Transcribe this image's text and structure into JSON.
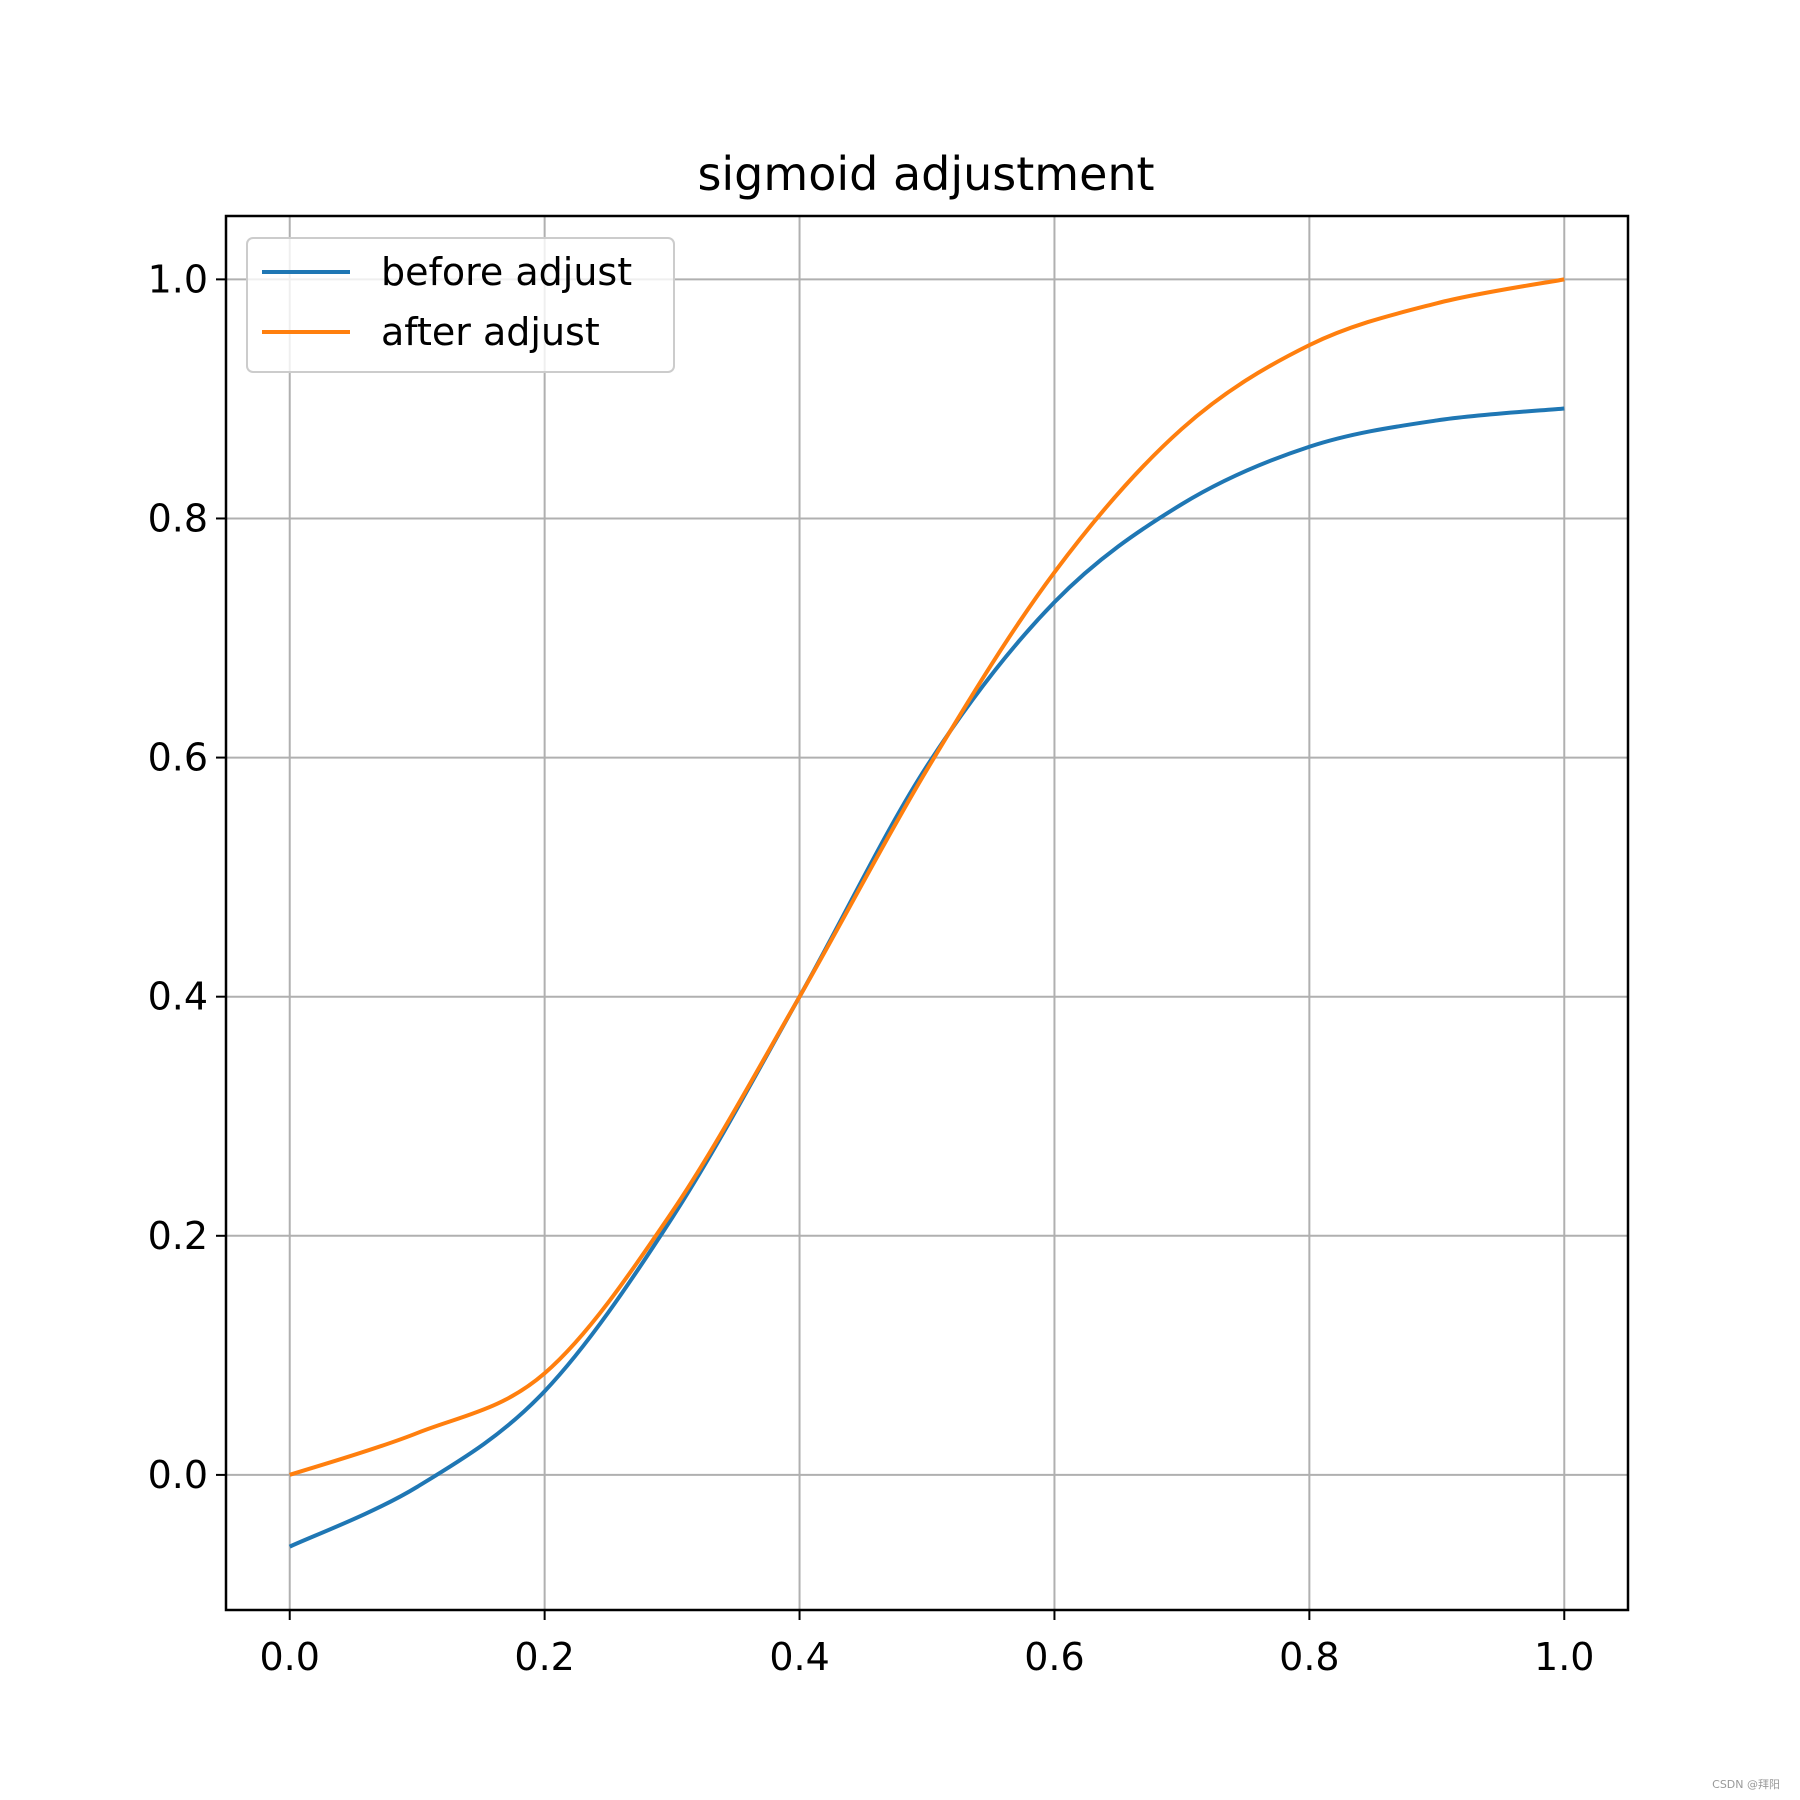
{
  "chart_data": {
    "type": "line",
    "title": "sigmoid adjustment",
    "xlabel": "",
    "ylabel": "",
    "xlim": [
      -0.05,
      1.05
    ],
    "ylim": [
      -0.113,
      1.053
    ],
    "xticks": [
      "0.0",
      "0.2",
      "0.4",
      "0.6",
      "0.8",
      "1.0"
    ],
    "yticks": [
      "0.0",
      "0.2",
      "0.4",
      "0.6",
      "0.8",
      "1.0"
    ],
    "grid": true,
    "legend_position": "top-left",
    "x": [
      0.0,
      0.1,
      0.2,
      0.3,
      0.4,
      0.5,
      0.6,
      0.7,
      0.8,
      0.9,
      1.0
    ],
    "series": [
      {
        "name": "before adjust",
        "color": "#1f77b4",
        "values": [
          -0.06,
          -0.01,
          0.07,
          0.215,
          0.4,
          0.593,
          0.73,
          0.812,
          0.86,
          0.882,
          0.892
        ]
      },
      {
        "name": "after adjust",
        "color": "#ff7f0e",
        "values": [
          0.0,
          0.035,
          0.085,
          0.22,
          0.4,
          0.59,
          0.755,
          0.875,
          0.945,
          0.98,
          1.0
        ]
      }
    ]
  },
  "watermark": "CSDN @拜阳"
}
